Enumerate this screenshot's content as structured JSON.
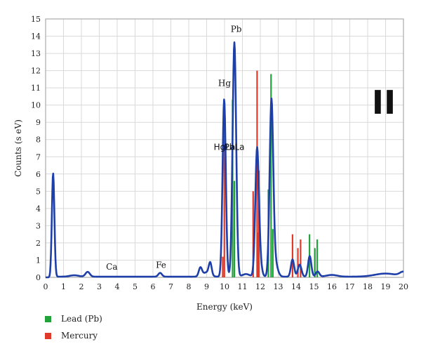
{
  "chart_data": {
    "type": "line",
    "xlabel": "Energy (keV)",
    "ylabel": "Counts (s eV)",
    "xlim": [
      0,
      20
    ],
    "ylim": [
      0,
      15
    ],
    "x_ticks": [
      0,
      1,
      2,
      3,
      4,
      5,
      6,
      7,
      8,
      9,
      10,
      11,
      12,
      13,
      14,
      15,
      16,
      17,
      18,
      19,
      20
    ],
    "y_ticks": [
      0,
      1,
      2,
      3,
      4,
      5,
      6,
      7,
      8,
      9,
      10,
      11,
      12,
      13,
      14,
      15
    ],
    "grid": true,
    "panel_label": "II",
    "colors": {
      "spectrum": "#1f3fa8",
      "lead": "#22a23a",
      "mercury": "#e03a2a",
      "grid": "#d9d9d9"
    },
    "spectrum_peaks": [
      {
        "x": 0.42,
        "y": 6.0,
        "w": 0.07
      },
      {
        "x": 2.35,
        "y": 0.28,
        "w": 0.12
      },
      {
        "x": 1.6,
        "y": 0.08,
        "w": 0.25
      },
      {
        "x": 6.4,
        "y": 0.22,
        "w": 0.1
      },
      {
        "x": 8.65,
        "y": 0.5,
        "w": 0.09
      },
      {
        "x": 9.0,
        "y": 0.25,
        "w": 0.2
      },
      {
        "x": 9.2,
        "y": 0.7,
        "w": 0.08
      },
      {
        "x": 9.98,
        "y": 10.3,
        "w": 0.09
      },
      {
        "x": 10.55,
        "y": 13.6,
        "w": 0.1
      },
      {
        "x": 11.2,
        "y": 0.15,
        "w": 0.2
      },
      {
        "x": 11.82,
        "y": 7.4,
        "w": 0.1
      },
      {
        "x": 12.0,
        "y": 0.6,
        "w": 0.1
      },
      {
        "x": 12.62,
        "y": 9.9,
        "w": 0.1
      },
      {
        "x": 12.8,
        "y": 0.9,
        "w": 0.15
      },
      {
        "x": 13.8,
        "y": 1.0,
        "w": 0.09
      },
      {
        "x": 14.2,
        "y": 0.7,
        "w": 0.1
      },
      {
        "x": 14.76,
        "y": 1.2,
        "w": 0.09
      },
      {
        "x": 15.2,
        "y": 0.3,
        "w": 0.1
      },
      {
        "x": 16.0,
        "y": 0.1,
        "w": 0.3
      },
      {
        "x": 19.0,
        "y": 0.18,
        "w": 0.6
      },
      {
        "x": 20.0,
        "y": 0.25,
        "w": 0.2
      }
    ],
    "spectrum_baseline": 0.04,
    "series": [
      {
        "name": "Lead (Pb)",
        "lines": [
          {
            "x": 10.45,
            "y": 10.3
          },
          {
            "x": 10.55,
            "y": 5.6
          },
          {
            "x": 12.6,
            "y": 11.8
          },
          {
            "x": 12.45,
            "y": 5.1
          },
          {
            "x": 12.7,
            "y": 2.8
          },
          {
            "x": 14.75,
            "y": 2.5
          },
          {
            "x": 15.05,
            "y": 1.7
          },
          {
            "x": 15.18,
            "y": 2.2
          }
        ]
      },
      {
        "name": "Mercury",
        "lines": [
          {
            "x": 9.99,
            "y": 8.9
          },
          {
            "x": 9.9,
            "y": 1.2
          },
          {
            "x": 11.82,
            "y": 12.0
          },
          {
            "x": 11.6,
            "y": 5.0
          },
          {
            "x": 11.92,
            "y": 6.2
          },
          {
            "x": 11.85,
            "y": 2.6
          },
          {
            "x": 13.8,
            "y": 2.5
          },
          {
            "x": 14.1,
            "y": 1.7
          },
          {
            "x": 14.25,
            "y": 2.2
          }
        ]
      }
    ],
    "annotations": [
      {
        "text": "Ca",
        "x": 3.7,
        "y": 0.45,
        "font": "serif"
      },
      {
        "text": "Fe",
        "x": 6.45,
        "y": 0.55,
        "font": "serif"
      },
      {
        "text": "Hg",
        "x": 10.0,
        "y": 11.1,
        "font": "serif"
      },
      {
        "text": "Pb",
        "x": 10.65,
        "y": 14.25,
        "font": "serif"
      },
      {
        "text": "HgLa",
        "x": 10.0,
        "y": 7.4,
        "font": "sans"
      },
      {
        "text": "PbLa",
        "x": 10.55,
        "y": 7.4,
        "font": "sans"
      }
    ]
  },
  "legend": [
    {
      "label": "Lead (Pb)",
      "color": "#22a23a"
    },
    {
      "label": "Mercury",
      "color": "#e03a2a"
    }
  ]
}
